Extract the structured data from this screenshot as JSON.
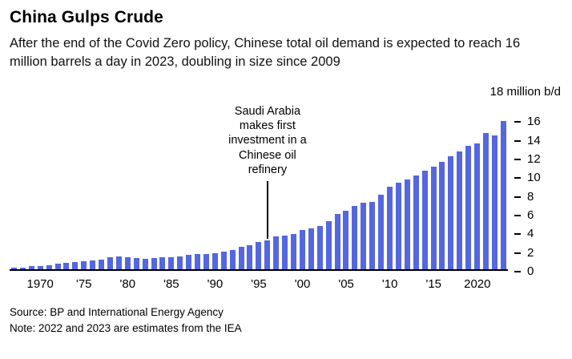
{
  "header": {
    "title": "China Gulps Crude",
    "subtitle": "After the end of the Covid Zero policy, Chinese total oil demand is expected to reach 16 million barrels a day in 2023, doubling in size since 2009"
  },
  "chart_data": {
    "type": "bar",
    "title": "China Gulps Crude",
    "unit_label": "18 million b/d",
    "ylabel": "million b/d",
    "ylim": [
      0,
      18
    ],
    "yticks": [
      0,
      2,
      4,
      6,
      8,
      10,
      12,
      14,
      16
    ],
    "grid": false,
    "legend": "none",
    "bar_color": "#5467E0",
    "x_start_year": 1967,
    "years": [
      1967,
      1968,
      1969,
      1970,
      1971,
      1972,
      1973,
      1974,
      1975,
      1976,
      1977,
      1978,
      1979,
      1980,
      1981,
      1982,
      1983,
      1984,
      1985,
      1986,
      1987,
      1988,
      1989,
      1990,
      1991,
      1992,
      1993,
      1994,
      1995,
      1996,
      1997,
      1998,
      1999,
      2000,
      2001,
      2002,
      2003,
      2004,
      2005,
      2006,
      2007,
      2008,
      2009,
      2010,
      2011,
      2012,
      2013,
      2014,
      2015,
      2016,
      2017,
      2018,
      2019,
      2020,
      2021,
      2022,
      2023
    ],
    "values": [
      0.15,
      0.2,
      0.3,
      0.35,
      0.45,
      0.6,
      0.65,
      0.75,
      0.85,
      0.9,
      1.05,
      1.25,
      1.4,
      1.3,
      1.2,
      1.15,
      1.2,
      1.25,
      1.3,
      1.4,
      1.55,
      1.65,
      1.65,
      1.7,
      1.85,
      2.1,
      2.4,
      2.55,
      2.9,
      3.1,
      3.5,
      3.6,
      3.8,
      4.2,
      4.4,
      4.7,
      5.2,
      6.0,
      6.3,
      6.8,
      7.2,
      7.3,
      8.0,
      8.9,
      9.3,
      9.7,
      10.1,
      10.6,
      11.1,
      11.6,
      12.2,
      12.7,
      13.3,
      13.6,
      14.7,
      14.4,
      16.0
    ],
    "x_ticks": [
      {
        "year": 1970,
        "label": "1970"
      },
      {
        "year": 1975,
        "label": "'75"
      },
      {
        "year": 1980,
        "label": "'80"
      },
      {
        "year": 1985,
        "label": "'85"
      },
      {
        "year": 1990,
        "label": "'90"
      },
      {
        "year": 1995,
        "label": "'95"
      },
      {
        "year": 2000,
        "label": "'00"
      },
      {
        "year": 2005,
        "label": "'05"
      },
      {
        "year": 2010,
        "label": "'10"
      },
      {
        "year": 2015,
        "label": "'15"
      },
      {
        "year": 2020,
        "label": "2020"
      }
    ],
    "annotation": {
      "text": "Saudi Arabia makes first investment in a Chinese oil refinery",
      "anchor_year": 1996
    }
  },
  "footer": {
    "source": "Source: BP and International Energy Agency",
    "note": "Note: 2022 and 2023 are estimates from the IEA"
  }
}
